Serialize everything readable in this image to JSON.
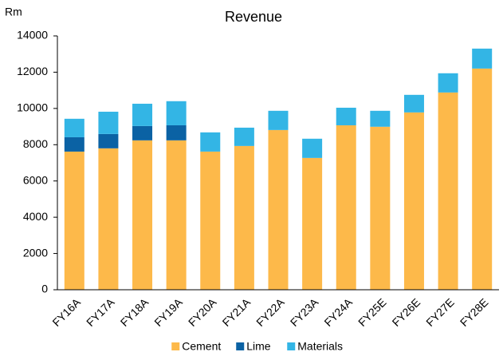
{
  "chart_data": {
    "type": "stacked_bar",
    "title": "Revenue",
    "y_label": "Rm",
    "categories": [
      "FY16A",
      "FY17A",
      "FY18A",
      "FY19A",
      "FY20A",
      "FY21A",
      "FY22A",
      "FY23A",
      "FY24A",
      "FY25E",
      "FY26E",
      "FY27E",
      "FY28E"
    ],
    "series": [
      {
        "name": "Cement",
        "color": "#fdb94a",
        "values": [
          7620,
          7800,
          8240,
          8240,
          7620,
          7930,
          8810,
          7270,
          9070,
          8990,
          9780,
          10880,
          12200
        ]
      },
      {
        "name": "Lime",
        "color": "#0b62a4",
        "values": [
          790,
          790,
          790,
          830,
          0,
          0,
          0,
          0,
          0,
          0,
          0,
          0,
          0
        ]
      },
      {
        "name": "Materials",
        "color": "#33b5e5",
        "values": [
          1020,
          1230,
          1230,
          1330,
          1060,
          1010,
          1060,
          1060,
          970,
          880,
          970,
          1060,
          1100
        ]
      }
    ],
    "ylim": [
      0,
      14000
    ],
    "yticks": [
      0,
      2000,
      4000,
      6000,
      8000,
      10000,
      12000,
      14000
    ],
    "grid": false,
    "legend": "bottom"
  }
}
